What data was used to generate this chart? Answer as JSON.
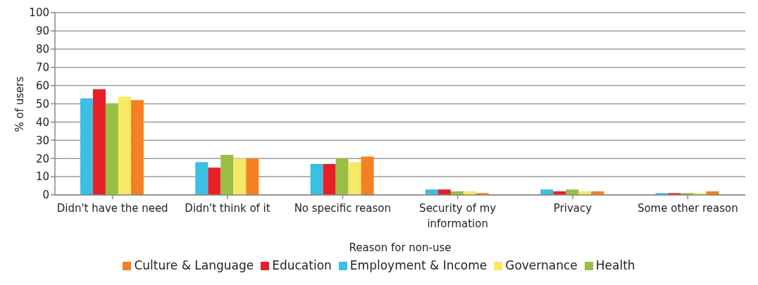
{
  "chart_data": {
    "type": "bar",
    "xlabel": "Reason for non-use",
    "ylabel": "% of users",
    "categories": [
      "Didn't have the need",
      "Didn't think of it",
      "No specific reason",
      "Security of my information",
      "Privacy",
      "Some other reason"
    ],
    "series": [
      {
        "name": "Employment & Income",
        "color": "#3bbfe2",
        "values": [
          53,
          18,
          17,
          3,
          3,
          1
        ]
      },
      {
        "name": "Education",
        "color": "#e52127",
        "values": [
          58,
          15,
          17,
          3,
          2,
          1
        ]
      },
      {
        "name": "Health",
        "color": "#98bf43",
        "values": [
          50,
          22,
          20,
          2,
          3,
          1
        ]
      },
      {
        "name": "Governance",
        "color": "#f7e963",
        "values": [
          54,
          20,
          18,
          2,
          2,
          1
        ]
      },
      {
        "name": "Culture & Language",
        "color": "#f58021",
        "values": [
          52,
          20,
          21,
          1,
          2,
          2
        ]
      }
    ],
    "ylim": [
      0,
      100
    ],
    "yticks": [
      0,
      10,
      20,
      30,
      40,
      50,
      60,
      70,
      80,
      90,
      100
    ],
    "grid": "y",
    "legend": "bottom"
  }
}
